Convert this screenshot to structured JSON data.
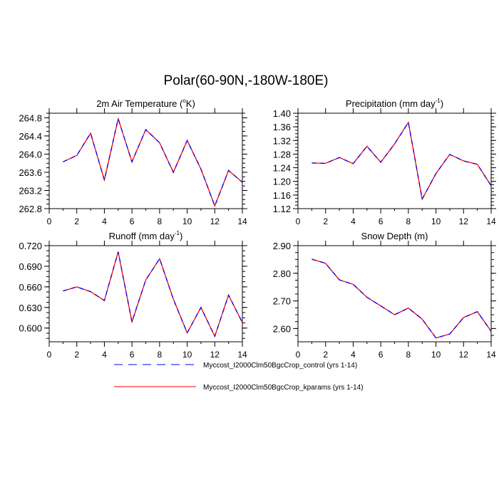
{
  "title": "Polar(60-90N,-180W-180E)",
  "legend": [
    {
      "label": "Myccost_I2000Clm50BgcCrop_control (yrs 1-14)",
      "color": "#0000ff",
      "style": "dashed"
    },
    {
      "label": "Myccost_I2000Clm50BgcCrop_kparams (yrs 1-14)",
      "color": "#ff0000",
      "style": "solid"
    }
  ],
  "chart_data": [
    {
      "type": "line",
      "title": "2m Air Temperature (",
      "title_sup": "o",
      "title_end": "K)",
      "x": [
        1,
        2,
        3,
        4,
        5,
        6,
        7,
        8,
        9,
        10,
        11,
        12,
        13,
        14
      ],
      "xlim": [
        0,
        14
      ],
      "xticks": [
        "0",
        "2",
        "4",
        "6",
        "8",
        "10",
        "12",
        "14"
      ],
      "ylim": [
        262.8,
        264.9
      ],
      "yticks": [
        "262.8",
        "263.2",
        "263.6",
        "264.0",
        "264.4",
        "264.8"
      ],
      "series": [
        {
          "name": "control",
          "values": [
            263.83,
            263.97,
            264.46,
            263.43,
            264.78,
            263.83,
            264.54,
            264.25,
            263.6,
            264.3,
            263.67,
            262.86,
            263.64,
            263.38
          ]
        },
        {
          "name": "kparams",
          "values": [
            263.83,
            263.97,
            264.46,
            263.43,
            264.78,
            263.83,
            264.54,
            264.25,
            263.6,
            264.3,
            263.67,
            262.86,
            263.64,
            263.38
          ]
        }
      ]
    },
    {
      "type": "line",
      "title": "Precipitation (mm day",
      "title_sup": "-1",
      "title_end": ")",
      "x": [
        1,
        2,
        3,
        4,
        5,
        6,
        7,
        8,
        9,
        10,
        11,
        12,
        13,
        14
      ],
      "xlim": [
        0,
        14
      ],
      "xticks": [
        "0",
        "2",
        "4",
        "6",
        "8",
        "10",
        "12",
        "14"
      ],
      "ylim": [
        1.12,
        1.4
      ],
      "yticks": [
        "1.12",
        "1.16",
        "1.20",
        "1.24",
        "1.28",
        "1.32",
        "1.36",
        "1.40"
      ],
      "series": [
        {
          "name": "control",
          "values": [
            1.254,
            1.253,
            1.27,
            1.252,
            1.303,
            1.256,
            1.31,
            1.373,
            1.148,
            1.223,
            1.279,
            1.26,
            1.25,
            1.187
          ]
        },
        {
          "name": "kparams",
          "values": [
            1.254,
            1.253,
            1.27,
            1.252,
            1.303,
            1.256,
            1.31,
            1.373,
            1.148,
            1.223,
            1.279,
            1.26,
            1.25,
            1.187
          ]
        }
      ]
    },
    {
      "type": "line",
      "title": "Runoff (mm day",
      "title_sup": "-1",
      "title_end": ")",
      "x": [
        1,
        2,
        3,
        4,
        5,
        6,
        7,
        8,
        9,
        10,
        11,
        12,
        13,
        14
      ],
      "xlim": [
        0,
        14
      ],
      "xticks": [
        "0",
        "2",
        "4",
        "6",
        "8",
        "10",
        "12",
        "14"
      ],
      "ylim": [
        0.58,
        0.72
      ],
      "yticks": [
        "0.600",
        "0.630",
        "0.660",
        "0.690",
        "0.720"
      ],
      "series": [
        {
          "name": "control",
          "values": [
            0.654,
            0.66,
            0.653,
            0.64,
            0.711,
            0.609,
            0.67,
            0.701,
            0.642,
            0.593,
            0.63,
            0.588,
            0.648,
            0.608
          ]
        },
        {
          "name": "kparams",
          "values": [
            0.654,
            0.66,
            0.653,
            0.64,
            0.711,
            0.609,
            0.67,
            0.701,
            0.642,
            0.593,
            0.63,
            0.588,
            0.648,
            0.608
          ]
        }
      ]
    },
    {
      "type": "line",
      "title": "Snow Depth (m)",
      "title_sup": "",
      "title_end": "",
      "x": [
        1,
        2,
        3,
        4,
        5,
        6,
        7,
        8,
        9,
        10,
        11,
        12,
        13,
        14
      ],
      "xlim": [
        0,
        14
      ],
      "xticks": [
        "0",
        "2",
        "4",
        "6",
        "8",
        "10",
        "12",
        "14"
      ],
      "ylim": [
        2.552,
        2.9
      ],
      "yticks": [
        "2.60",
        "2.70",
        "2.80",
        "2.90"
      ],
      "series": [
        {
          "name": "control",
          "values": [
            2.851,
            2.836,
            2.776,
            2.76,
            2.713,
            2.682,
            2.65,
            2.674,
            2.634,
            2.566,
            2.58,
            2.64,
            2.661,
            2.59
          ]
        },
        {
          "name": "kparams",
          "values": [
            2.851,
            2.836,
            2.776,
            2.76,
            2.713,
            2.682,
            2.65,
            2.674,
            2.634,
            2.566,
            2.58,
            2.64,
            2.661,
            2.59
          ]
        }
      ]
    }
  ]
}
